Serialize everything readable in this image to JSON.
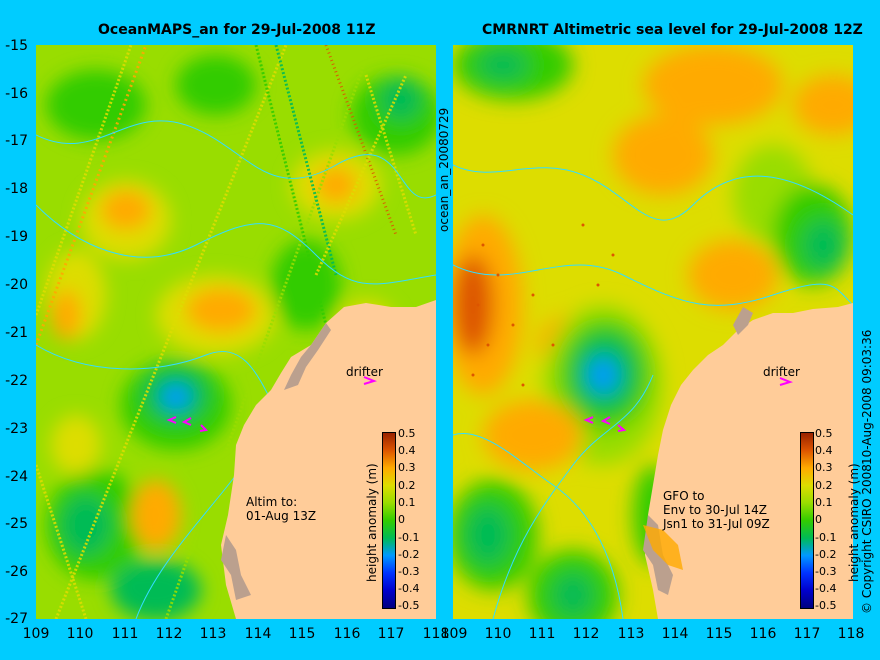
{
  "panels": [
    {
      "title": "OceanMAPS_an for 29-Jul-2008 11Z",
      "colorbar_label": "height anomaly (m)",
      "drifter_label": "drifter",
      "note_lines": [
        "Altim to:",
        "01-Aug 13Z"
      ]
    },
    {
      "title": "CMRNRT Altimetric sea level  for 29-Jul-2008 12Z",
      "colorbar_label": "height anomaly (m)",
      "drifter_label": "drifter",
      "note_lines": [
        "GFO to",
        "Env to 30-Jul 14Z",
        "Jsn1 to 31-Jul 09Z"
      ]
    }
  ],
  "side_label_middle": "ocean_an_20080729",
  "side_label_right": "10-Aug-2008 09:03:36",
  "copyright": "© Copyright CSIRO 2008",
  "axes": {
    "lat_ticks": [
      "-15",
      "-16",
      "-17",
      "-18",
      "-19",
      "-20",
      "-21",
      "-22",
      "-23",
      "-24",
      "-25",
      "-26",
      "-27"
    ],
    "lon_ticks": [
      "109",
      "110",
      "111",
      "112",
      "113",
      "114",
      "115",
      "116",
      "117",
      "118"
    ],
    "lat_range": [
      -27,
      -15
    ],
    "lon_range": [
      109,
      118
    ]
  },
  "colorbar": {
    "ticks": [
      "0.5",
      "0.4",
      "0.3",
      "0.2",
      "0.1",
      "0",
      "-0.1",
      "-0.2",
      "-0.3",
      "-0.4",
      "-0.5"
    ],
    "range": [
      -0.5,
      0.5
    ],
    "colors": [
      "#00007f",
      "#0000cc",
      "#0033ff",
      "#0099ff",
      "#00bb55",
      "#33cc00",
      "#99dd00",
      "#dddd00",
      "#ffaa00",
      "#dd5500",
      "#992200"
    ]
  },
  "colors": {
    "background": "#00ccff",
    "land": "#ffcc99",
    "land_shelf": "#bba08e",
    "contour": "#33ddff",
    "drifter": "#ff00ff"
  }
}
